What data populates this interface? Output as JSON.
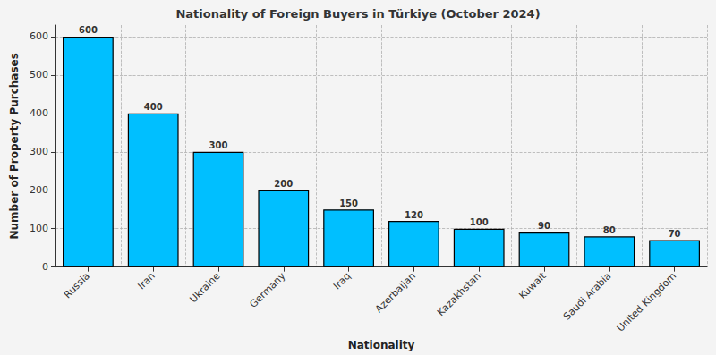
{
  "chart_data": {
    "type": "bar",
    "title": "Nationality of Foreign Buyers in Türkiye (October 2024)",
    "x_label": "Nationality",
    "y_label": "Number of Property Purchases",
    "categories": [
      "Russia",
      "Iran",
      "Ukraine",
      "Germany",
      "Iraq",
      "Azerbaijan",
      "Kazakhstan",
      "Kuwait",
      "Saudi Arabia",
      "United Kingdom"
    ],
    "values": [
      600,
      400,
      300,
      200,
      150,
      120,
      100,
      90,
      80,
      70
    ],
    "color": "#00bfff",
    "ylim": [
      0,
      630
    ],
    "yticks": [
      0,
      100,
      200,
      300,
      400,
      500,
      600
    ],
    "grid": true,
    "data_labels": true
  }
}
